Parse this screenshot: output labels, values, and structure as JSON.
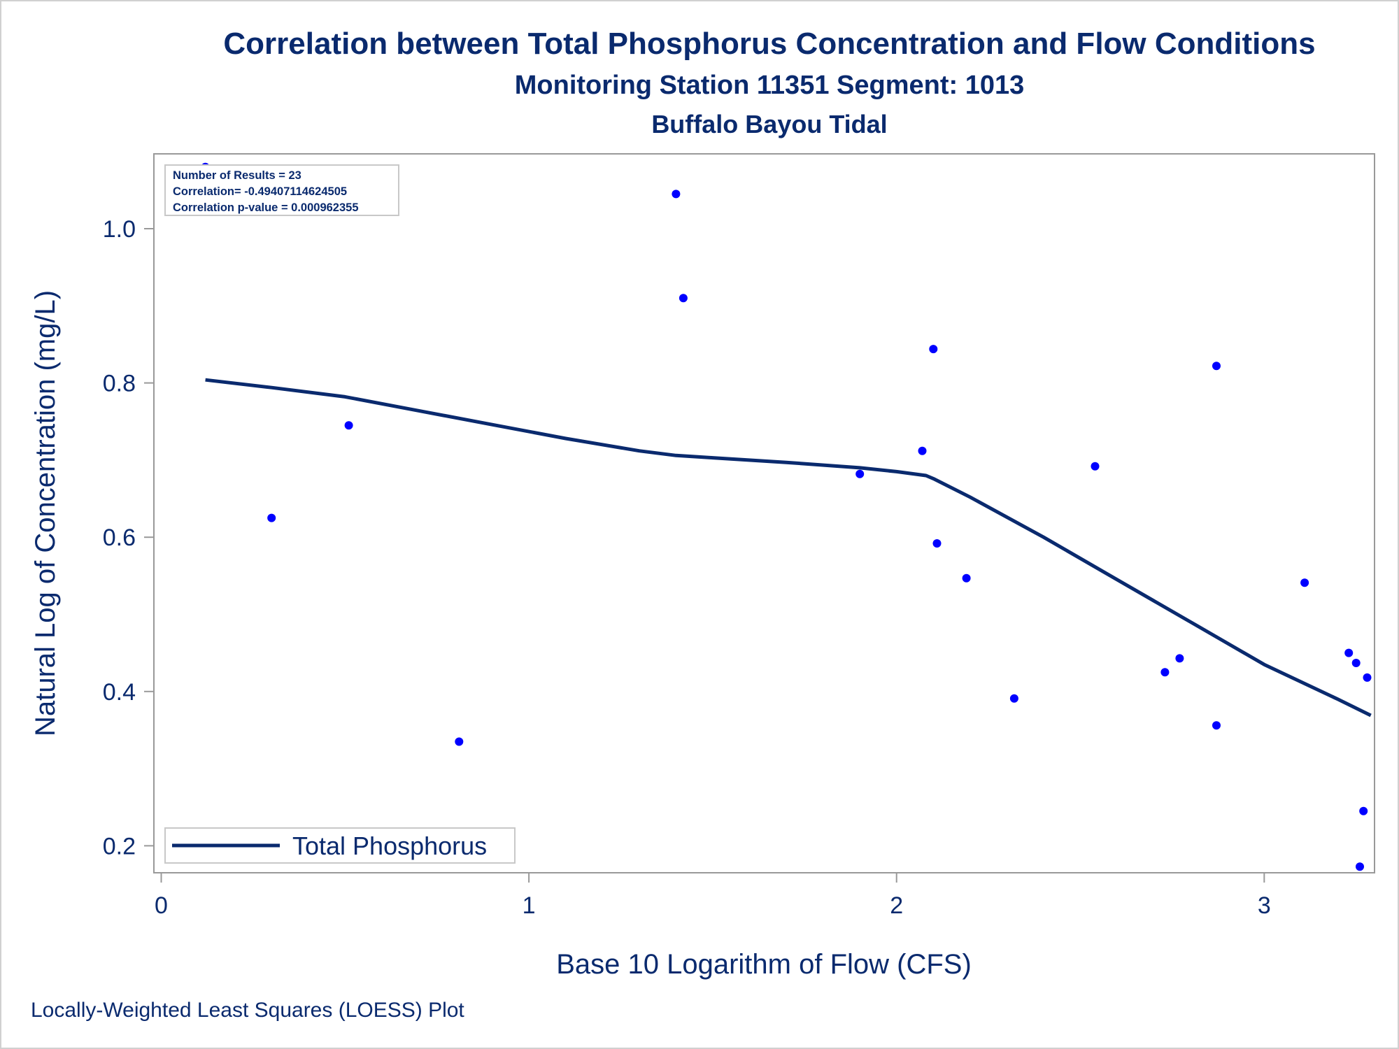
{
  "titles": {
    "title": "Correlation between Total Phosphorus Concentration and Flow Conditions",
    "subtitle": "Monitoring Station 11351 Segment: 1013",
    "subtitle2": "Buffalo Bayou Tidal"
  },
  "footnote": "Locally-Weighted Least Squares (LOESS) Plot",
  "stats_box": {
    "line1": "Number of Results = 23",
    "line2": "Correlation= -0.49407114624505",
    "line3": "Correlation p-value = 0.000962355"
  },
  "legend": {
    "label": "Total Phosphorus"
  },
  "colors": {
    "text": "#0a2a6e",
    "points": "#0000ff",
    "line": "#0a2a6e",
    "frame": "#999999"
  },
  "chart_data": {
    "type": "scatter",
    "title": "Correlation between Total Phosphorus Concentration and Flow Conditions",
    "subtitle": "Monitoring Station 11351 Segment: 1013",
    "xlabel": "Base 10 Logarithm of Flow (CFS)",
    "ylabel": "Natural Log of Concentration (mg/L)",
    "xlim": [
      -0.02,
      3.3
    ],
    "ylim": [
      0.165,
      1.097
    ],
    "xticks": [
      0,
      1,
      2,
      3
    ],
    "yticks": [
      0.2,
      0.4,
      0.6,
      0.8,
      1.0
    ],
    "xtick_labels": [
      "0",
      "1",
      "2",
      "3"
    ],
    "ytick_labels": [
      "0.2",
      "0.4",
      "0.6",
      "0.8",
      "1.0"
    ],
    "grid": false,
    "legend_position": "bottom-left",
    "series": [
      {
        "kind": "points",
        "x": [
          0.12,
          0.3,
          0.51,
          0.81,
          1.4,
          1.42,
          1.9,
          2.07,
          2.1,
          2.11,
          2.19,
          2.32,
          2.54,
          2.73,
          2.77,
          2.87,
          2.87,
          3.11,
          3.23,
          3.25,
          3.28,
          3.27,
          3.26
        ],
        "y": [
          1.08,
          0.625,
          0.745,
          0.335,
          1.045,
          0.91,
          0.682,
          0.712,
          0.844,
          0.592,
          0.547,
          0.391,
          0.692,
          0.425,
          0.443,
          0.356,
          0.822,
          0.541,
          0.45,
          0.437,
          0.418,
          0.245,
          0.173
        ]
      },
      {
        "name": "Total Phosphorus",
        "kind": "loess",
        "x": [
          0.12,
          0.3,
          0.5,
          0.7,
          0.9,
          1.1,
          1.3,
          1.4,
          1.5,
          1.7,
          1.9,
          2.0,
          2.08,
          2.1,
          2.2,
          2.4,
          2.6,
          2.8,
          3.0,
          3.2,
          3.29
        ],
        "y": [
          0.804,
          0.794,
          0.782,
          0.764,
          0.746,
          0.728,
          0.712,
          0.706,
          0.703,
          0.697,
          0.69,
          0.685,
          0.68,
          0.676,
          0.652,
          0.6,
          0.545,
          0.49,
          0.435,
          0.39,
          0.369
        ]
      }
    ]
  }
}
